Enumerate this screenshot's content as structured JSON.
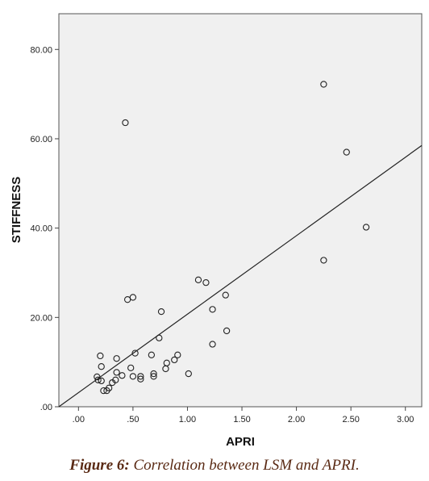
{
  "chart_data": {
    "type": "scatter",
    "xlabel": "APRI",
    "ylabel": "STIFFNESS",
    "xlim": [
      -0.18,
      3.15
    ],
    "ylim": [
      0,
      88
    ],
    "x_ticks": [
      0,
      0.5,
      1,
      1.5,
      2,
      2.5,
      3
    ],
    "x_tick_labels": [
      ".00",
      ".50",
      "1.00",
      "1.50",
      "2.00",
      "2.50",
      "3.00"
    ],
    "y_ticks": [
      0,
      20,
      40,
      60,
      80
    ],
    "y_tick_labels": [
      ".00",
      "20.00",
      "40.00",
      "60.00",
      "80.00"
    ],
    "grid": false,
    "plot_background": "#f0f0f0",
    "point_color": "#222222",
    "fit_line": {
      "x": [
        -0.18,
        3.15
      ],
      "y": [
        -0.5,
        58.5
      ]
    },
    "points": [
      {
        "x": 2.25,
        "y": 72.2
      },
      {
        "x": 0.43,
        "y": 63.6
      },
      {
        "x": 2.46,
        "y": 57.0
      },
      {
        "x": 2.64,
        "y": 40.2
      },
      {
        "x": 2.25,
        "y": 32.8
      },
      {
        "x": 1.1,
        "y": 28.4
      },
      {
        "x": 1.17,
        "y": 27.8
      },
      {
        "x": 1.35,
        "y": 25.0
      },
      {
        "x": 0.5,
        "y": 24.5
      },
      {
        "x": 0.45,
        "y": 24.0
      },
      {
        "x": 0.76,
        "y": 21.3
      },
      {
        "x": 1.23,
        "y": 21.8
      },
      {
        "x": 1.36,
        "y": 17.0
      },
      {
        "x": 0.74,
        "y": 15.4
      },
      {
        "x": 1.23,
        "y": 14.0
      },
      {
        "x": 0.2,
        "y": 11.4
      },
      {
        "x": 0.35,
        "y": 10.8
      },
      {
        "x": 0.52,
        "y": 12.0
      },
      {
        "x": 0.67,
        "y": 11.6
      },
      {
        "x": 0.91,
        "y": 11.6
      },
      {
        "x": 0.88,
        "y": 10.5
      },
      {
        "x": 0.81,
        "y": 9.8
      },
      {
        "x": 0.21,
        "y": 9.0
      },
      {
        "x": 0.48,
        "y": 8.7
      },
      {
        "x": 0.8,
        "y": 8.5
      },
      {
        "x": 0.35,
        "y": 7.7
      },
      {
        "x": 0.4,
        "y": 7.0
      },
      {
        "x": 0.5,
        "y": 6.8
      },
      {
        "x": 0.57,
        "y": 6.8
      },
      {
        "x": 0.57,
        "y": 6.2
      },
      {
        "x": 0.69,
        "y": 7.4
      },
      {
        "x": 0.69,
        "y": 6.8
      },
      {
        "x": 1.01,
        "y": 7.4
      },
      {
        "x": 0.17,
        "y": 6.7
      },
      {
        "x": 0.18,
        "y": 6.0
      },
      {
        "x": 0.21,
        "y": 5.8
      },
      {
        "x": 0.31,
        "y": 5.4
      },
      {
        "x": 0.34,
        "y": 6.0
      },
      {
        "x": 0.28,
        "y": 4.2
      },
      {
        "x": 0.23,
        "y": 3.6
      },
      {
        "x": 0.26,
        "y": 3.6
      }
    ]
  },
  "caption": {
    "label": "Figure 6:",
    "text": "Correlation between LSM and APRI."
  }
}
